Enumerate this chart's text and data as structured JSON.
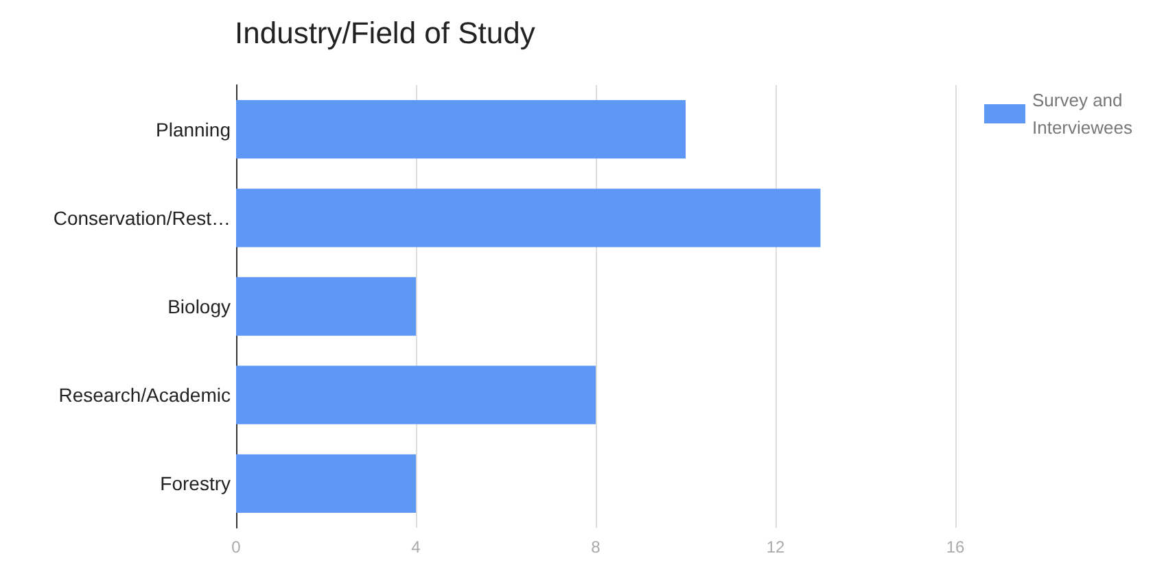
{
  "chart_data": {
    "type": "bar",
    "title": "Industry/Field of Study",
    "orientation": "horizontal",
    "categories": [
      "Planning",
      "Conservation/Rest…",
      "Biology",
      "Research/Academic",
      "Forestry"
    ],
    "series": [
      {
        "name": "Survey and Interviewees",
        "color": "#5e97f6",
        "values": [
          10,
          13,
          4,
          8,
          4
        ]
      }
    ],
    "xlim": [
      0,
      16
    ],
    "xticks": [
      0,
      4,
      8,
      12,
      16
    ],
    "grid": "x",
    "legend": "top right"
  }
}
